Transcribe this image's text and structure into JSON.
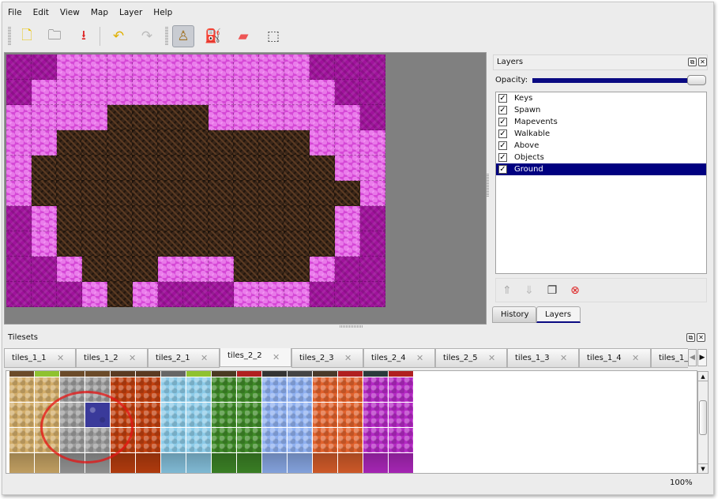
{
  "menu": [
    "File",
    "Edit",
    "View",
    "Map",
    "Layer",
    "Help"
  ],
  "toolbar": {
    "buttons": [
      {
        "name": "new-file-icon",
        "glyph": "🗋"
      },
      {
        "name": "open-file-icon",
        "glyph": "🗀"
      },
      {
        "name": "save-file-icon",
        "glyph": "⭳"
      },
      {
        "name": "undo-icon",
        "glyph": "↶"
      },
      {
        "name": "redo-icon",
        "glyph": "↷"
      },
      {
        "name": "stamp-brush-icon",
        "glyph": "♙",
        "active": true
      },
      {
        "name": "bucket-fill-icon",
        "glyph": "⛽"
      },
      {
        "name": "eraser-icon",
        "glyph": "▰"
      },
      {
        "name": "rectangle-select-icon",
        "glyph": "⬚"
      }
    ]
  },
  "map": {
    "rows": [
      "MMPPPPPPPPPPMMM",
      "MPPPPPPPPPPPPMM",
      "PPPPDDDDPPPPPPM",
      "PPDDDDDDDDDDPPP",
      "PDDDDDDDDDDDDPP",
      "PDDDDDDDDDDDDDP",
      "MPDDDDDDDDDDDPM",
      "MPDDDDDDDDDDDPM",
      "MMPDDDPPPDDDPMM",
      "MMMPDPMMMPPPMMM"
    ]
  },
  "layers": {
    "title": "Layers",
    "opacity_label": "Opacity:",
    "opacity": 1.0,
    "items": [
      {
        "label": "Keys",
        "visible": true
      },
      {
        "label": "Spawn",
        "visible": true
      },
      {
        "label": "Mapevents",
        "visible": true
      },
      {
        "label": "Walkable",
        "visible": true
      },
      {
        "label": "Above",
        "visible": true
      },
      {
        "label": "Objects",
        "visible": true
      },
      {
        "label": "Ground",
        "visible": true,
        "selected": true
      }
    ],
    "buttons": [
      "raise-layer-icon",
      "lower-layer-icon",
      "duplicate-layer-icon",
      "remove-layer-icon"
    ],
    "tabs": [
      "History",
      "Layers"
    ],
    "active_tab": "Layers"
  },
  "tilesets": {
    "title": "Tilesets",
    "tabs": [
      "tiles_1_1",
      "tiles_1_2",
      "tiles_2_1",
      "tiles_2_2",
      "tiles_2_3",
      "tiles_2_4",
      "tiles_2_5",
      "tiles_1_3",
      "tiles_1_4",
      "tiles_1_"
    ],
    "active_tab": "tiles_2_2",
    "column_colors": [
      "#d2ad6a",
      "#d2ad6a",
      "#9c9c9c",
      "#9c9c9c",
      "#c0400f",
      "#c0400f",
      "#8ccbe8",
      "#8ccbe8",
      "#3f8a28",
      "#3f8a28",
      "#8fb0f0",
      "#8fb0f0",
      "#e0612c",
      "#e0612c",
      "#b429c4",
      "#b429c4"
    ],
    "selected_tile_color": "#3a3a9a"
  },
  "status": {
    "zoom": "100%"
  }
}
